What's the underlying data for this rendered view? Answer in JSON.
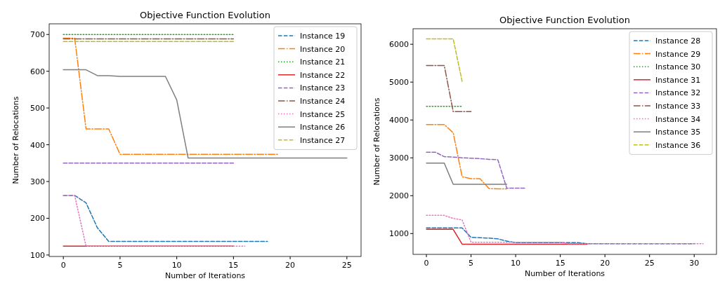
{
  "chart_data": [
    {
      "type": "line",
      "title": "Objective Function Evolution",
      "xlabel": "Number of Iterations",
      "ylabel": "Number of Relocations",
      "x": [
        0,
        1,
        2,
        3,
        4,
        5,
        6,
        7,
        8,
        9,
        10,
        11,
        12,
        13,
        14,
        15,
        16,
        17,
        18,
        19,
        20,
        21,
        22,
        23,
        24,
        25
      ],
      "xlim": [
        -1.25,
        26.25
      ],
      "ylim": [
        96,
        729
      ],
      "xticks": [
        0,
        5,
        10,
        15,
        20,
        25
      ],
      "yticks": [
        100,
        200,
        300,
        400,
        500,
        600,
        700
      ],
      "legend": "top right",
      "grid": false,
      "marker": "none",
      "series": [
        {
          "name": "Instance 19",
          "color": "#1f77b4",
          "line_style": "dashed",
          "values": [
            262,
            262,
            242,
            174,
            137,
            137,
            137,
            137,
            137,
            137,
            137,
            137,
            137,
            137,
            137,
            137,
            137,
            137,
            137,
            null,
            null,
            null,
            null,
            null,
            null,
            null
          ]
        },
        {
          "name": "Instance 20",
          "color": "#ff7f0e",
          "line_style": "dashdot",
          "values": [
            690,
            690,
            443,
            443,
            443,
            374,
            374,
            374,
            374,
            374,
            374,
            374,
            374,
            374,
            374,
            374,
            374,
            374,
            374,
            374,
            null,
            null,
            null,
            null,
            null,
            null
          ]
        },
        {
          "name": "Instance 21",
          "color": "#2ca02c",
          "line_style": "dotted",
          "values": [
            700,
            700,
            700,
            700,
            700,
            700,
            700,
            700,
            700,
            700,
            700,
            700,
            700,
            700,
            700,
            700,
            null,
            null,
            null,
            null,
            null,
            null,
            null,
            null,
            null,
            null
          ]
        },
        {
          "name": "Instance 22",
          "color": "#d62728",
          "line_style": "solid",
          "values": [
            124,
            124,
            124,
            124,
            124,
            124,
            124,
            124,
            124,
            124,
            124,
            124,
            124,
            124,
            124,
            124,
            null,
            null,
            null,
            null,
            null,
            null,
            null,
            null,
            null,
            null
          ]
        },
        {
          "name": "Instance 23",
          "color": "#9467bd",
          "line_style": "dashed",
          "values": [
            350,
            350,
            350,
            350,
            350,
            350,
            350,
            350,
            350,
            350,
            350,
            350,
            350,
            350,
            350,
            350,
            null,
            null,
            null,
            null,
            null,
            null,
            null,
            null,
            null,
            null
          ]
        },
        {
          "name": "Instance 24",
          "color": "#8c564b",
          "line_style": "dashdot",
          "values": [
            688,
            688,
            688,
            688,
            688,
            688,
            688,
            688,
            688,
            688,
            688,
            688,
            688,
            688,
            688,
            688,
            null,
            null,
            null,
            null,
            null,
            null,
            null,
            null,
            null,
            null
          ]
        },
        {
          "name": "Instance 25",
          "color": "#e377c2",
          "line_style": "dotted",
          "values": [
            262,
            262,
            124,
            124,
            124,
            124,
            124,
            124,
            124,
            124,
            124,
            124,
            124,
            124,
            124,
            124,
            124,
            null,
            null,
            null,
            null,
            null,
            null,
            null,
            null,
            null
          ]
        },
        {
          "name": "Instance 26",
          "color": "#7f7f7f",
          "line_style": "solid",
          "values": [
            604,
            604,
            604,
            588,
            588,
            586,
            586,
            586,
            586,
            586,
            522,
            364,
            364,
            364,
            364,
            364,
            364,
            364,
            364,
            364,
            364,
            364,
            364,
            364,
            364,
            364
          ]
        },
        {
          "name": "Instance 27",
          "color": "#bcbd22",
          "line_style": "dashed",
          "values": [
            681,
            681,
            681,
            681,
            681,
            681,
            681,
            681,
            681,
            681,
            681,
            681,
            681,
            681,
            681,
            681,
            null,
            null,
            null,
            null,
            null,
            null,
            null,
            null,
            null,
            null
          ]
        }
      ]
    },
    {
      "type": "line",
      "title": "Objective Function Evolution",
      "xlabel": "Number of Iterations",
      "ylabel": "Number of Relocations",
      "x": [
        0,
        1,
        2,
        3,
        4,
        5,
        6,
        7,
        8,
        9,
        10,
        11,
        12,
        13,
        14,
        15,
        16,
        17,
        18,
        19,
        20,
        21,
        22,
        23,
        24,
        25,
        26,
        27,
        28,
        29,
        30,
        31
      ],
      "xlim": [
        -1.5,
        32.5
      ],
      "ylim": [
        450,
        6410
      ],
      "xticks": [
        0,
        5,
        10,
        15,
        20,
        25,
        30
      ],
      "yticks": [
        1000,
        2000,
        3000,
        4000,
        5000,
        6000
      ],
      "legend": "top right",
      "grid": false,
      "marker": "none",
      "series": [
        {
          "name": "Instance 28",
          "color": "#1f77b4",
          "line_style": "dashed",
          "values": [
            1150,
            1150,
            1150,
            1150,
            1150,
            900,
            890,
            880,
            860,
            800,
            760,
            760,
            760,
            760,
            760,
            760,
            760,
            760,
            730,
            730,
            730,
            730,
            730,
            730,
            730,
            730,
            730,
            730,
            730,
            730,
            730,
            null
          ]
        },
        {
          "name": "Instance 29",
          "color": "#ff7f0e",
          "line_style": "dashdot",
          "values": [
            3880,
            3880,
            3880,
            3660,
            2500,
            2450,
            2450,
            2190,
            2180,
            2180,
            null,
            null,
            null,
            null,
            null,
            null,
            null,
            null,
            null,
            null,
            null,
            null,
            null,
            null,
            null,
            null,
            null,
            null,
            null,
            null,
            null,
            null
          ]
        },
        {
          "name": "Instance 30",
          "color": "#2ca02c",
          "line_style": "dotted",
          "values": [
            4360,
            4360,
            4360,
            4360,
            4360,
            null,
            null,
            null,
            null,
            null,
            null,
            null,
            null,
            null,
            null,
            null,
            null,
            null,
            null,
            null,
            null,
            null,
            null,
            null,
            null,
            null,
            null,
            null,
            null,
            null,
            null,
            null
          ]
        },
        {
          "name": "Instance 31",
          "color": "#d62728",
          "line_style": "solid",
          "values": [
            1110,
            1110,
            1110,
            1110,
            720,
            720,
            720,
            720,
            720,
            720,
            720,
            720,
            720,
            720,
            720,
            720,
            720,
            720,
            720,
            null,
            null,
            null,
            null,
            null,
            null,
            null,
            null,
            null,
            null,
            null,
            null,
            null
          ]
        },
        {
          "name": "Instance 32",
          "color": "#9467bd",
          "line_style": "dashed",
          "values": [
            3150,
            3150,
            3030,
            3020,
            3000,
            2990,
            2980,
            2960,
            2950,
            2200,
            2200,
            2200,
            null,
            null,
            null,
            null,
            null,
            null,
            null,
            null,
            null,
            null,
            null,
            null,
            null,
            null,
            null,
            null,
            null,
            null,
            null,
            null
          ]
        },
        {
          "name": "Instance 33",
          "color": "#8c564b",
          "line_style": "dashdot",
          "values": [
            5440,
            5440,
            5440,
            4220,
            4220,
            4220,
            null,
            null,
            null,
            null,
            null,
            null,
            null,
            null,
            null,
            null,
            null,
            null,
            null,
            null,
            null,
            null,
            null,
            null,
            null,
            null,
            null,
            null,
            null,
            null,
            null,
            null
          ]
        },
        {
          "name": "Instance 34",
          "color": "#e377c2",
          "line_style": "dotted",
          "values": [
            1480,
            1480,
            1480,
            1400,
            1360,
            770,
            770,
            770,
            770,
            770,
            770,
            770,
            770,
            770,
            770,
            770,
            730,
            730,
            730,
            730,
            730,
            730,
            730,
            730,
            730,
            730,
            730,
            730,
            730,
            730,
            730,
            730
          ]
        },
        {
          "name": "Instance 35",
          "color": "#7f7f7f",
          "line_style": "solid",
          "values": [
            2860,
            2860,
            2860,
            2300,
            2300,
            2300,
            2300,
            2300,
            2300,
            2300,
            null,
            null,
            null,
            null,
            null,
            null,
            null,
            null,
            null,
            null,
            null,
            null,
            null,
            null,
            null,
            null,
            null,
            null,
            null,
            null,
            null,
            null
          ]
        },
        {
          "name": "Instance 36",
          "color": "#bcbd22",
          "line_style": "dashed",
          "values": [
            6140,
            6140,
            6140,
            6140,
            5020,
            null,
            null,
            null,
            null,
            null,
            null,
            null,
            null,
            null,
            null,
            null,
            null,
            null,
            null,
            null,
            null,
            null,
            null,
            null,
            null,
            null,
            null,
            null,
            null,
            null,
            null,
            null
          ]
        }
      ]
    }
  ]
}
